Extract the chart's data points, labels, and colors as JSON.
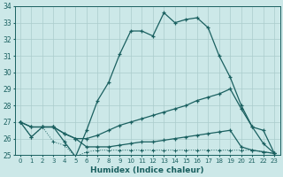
{
  "xlabel": "Humidex (Indice chaleur)",
  "xlim": [
    -0.5,
    23.5
  ],
  "ylim": [
    25,
    34
  ],
  "yticks": [
    25,
    26,
    27,
    28,
    29,
    30,
    31,
    32,
    33,
    34
  ],
  "xticks": [
    0,
    1,
    2,
    3,
    4,
    5,
    6,
    7,
    8,
    9,
    10,
    11,
    12,
    13,
    14,
    15,
    16,
    17,
    18,
    19,
    20,
    21,
    22,
    23
  ],
  "bg_color": "#cce8e8",
  "line_color": "#1a6060",
  "grid_color": "#aacccc",
  "line1_y": [
    27.0,
    26.1,
    26.7,
    26.7,
    25.8,
    24.9,
    26.5,
    28.3,
    29.4,
    31.1,
    32.5,
    32.5,
    32.2,
    33.6,
    33.0,
    33.2,
    33.3,
    32.7,
    31.0,
    29.7,
    28.0,
    26.7,
    25.7,
    25.1
  ],
  "line2_y": [
    27.0,
    26.7,
    26.7,
    26.7,
    26.3,
    26.0,
    26.0,
    26.2,
    26.5,
    26.8,
    27.0,
    27.2,
    27.4,
    27.6,
    27.8,
    28.0,
    28.3,
    28.5,
    28.7,
    29.0,
    27.8,
    26.7,
    26.5,
    25.1
  ],
  "line3_y": [
    27.0,
    26.7,
    26.7,
    26.7,
    26.3,
    26.0,
    25.5,
    25.5,
    25.5,
    25.6,
    25.7,
    25.8,
    25.8,
    25.9,
    26.0,
    26.1,
    26.2,
    26.3,
    26.4,
    26.5,
    25.5,
    25.3,
    25.2,
    25.1
  ],
  "line4_y": [
    27.0,
    26.1,
    26.7,
    25.8,
    25.6,
    24.9,
    25.2,
    25.3,
    25.3,
    25.3,
    25.3,
    25.3,
    25.3,
    25.3,
    25.3,
    25.3,
    25.3,
    25.3,
    25.3,
    25.3,
    25.3,
    25.3,
    25.2,
    25.1
  ]
}
